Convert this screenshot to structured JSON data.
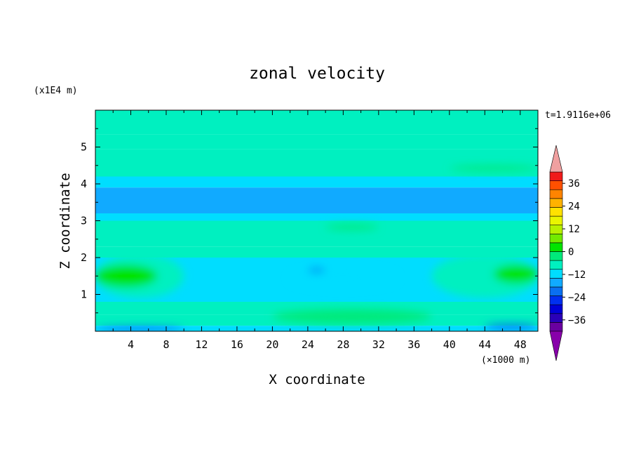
{
  "chart_data": {
    "type": "heatmap",
    "title": "zonal velocity",
    "xlabel": "X coordinate",
    "ylabel": "Z coordinate",
    "x_unit": "(×1000 m)",
    "y_unit": "(x1E4 m)",
    "time_label": "t=1.9116e+06",
    "xlim": [
      0,
      50
    ],
    "ylim": [
      0,
      6
    ],
    "x_ticks": [
      4,
      8,
      12,
      16,
      20,
      24,
      28,
      32,
      36,
      40,
      44,
      48
    ],
    "x_tick_labels": [
      "4",
      "8",
      "12",
      "16",
      "20",
      "24",
      "28",
      "32",
      "36",
      "40",
      "44",
      "48"
    ],
    "y_ticks": [
      1,
      2,
      3,
      4,
      5
    ],
    "y_tick_labels": [
      "1",
      "2",
      "3",
      "4",
      "5"
    ],
    "colorbar": {
      "min": -42,
      "max": 42,
      "step": 6,
      "extend": "both",
      "ticks": [
        36,
        24,
        12,
        0,
        -12,
        -24,
        -36
      ],
      "tick_labels": [
        "36",
        "24",
        "12",
        "0",
        "−12",
        "−24",
        "−36"
      ],
      "colors": [
        "#6a00a0",
        "#2a00b8",
        "#0000d8",
        "#0030f0",
        "#0a70f0",
        "#11aaff",
        "#00ddff",
        "#00f0c0",
        "#00ea7a",
        "#00e400",
        "#72ea00",
        "#b8f000",
        "#eaf500",
        "#ffe200",
        "#ffb200",
        "#ff8400",
        "#ff5000",
        "#f01a1a"
      ],
      "under_color": "#8800aa",
      "over_color": "#f0a0a0"
    },
    "bands": [
      {
        "z": [
          5.8,
          6.0
        ],
        "value": 0
      },
      {
        "z": [
          5.35,
          5.8
        ],
        "value": 0
      },
      {
        "z": [
          4.95,
          5.35
        ],
        "value": 3
      },
      {
        "z": [
          4.2,
          4.95
        ],
        "value": 0
      },
      {
        "z": [
          3.9,
          4.2
        ],
        "value": -6
      },
      {
        "z": [
          3.2,
          3.9
        ],
        "value": -10
      },
      {
        "z": [
          3.0,
          3.2
        ],
        "value": -4
      },
      {
        "z": [
          2.3,
          3.0
        ],
        "value": 3
      },
      {
        "z": [
          2.0,
          2.3
        ],
        "value": 0
      },
      {
        "z": [
          0.8,
          2.0
        ],
        "value": -3
      },
      {
        "z": [
          0.45,
          0.8
        ],
        "value": 0
      },
      {
        "z": [
          0.15,
          0.45
        ],
        "value": 0
      },
      {
        "z": [
          0.0,
          0.15
        ],
        "value": -6
      }
    ],
    "features": [
      {
        "x": [
          0,
          10
        ],
        "z": [
          0.9,
          2.1
        ],
        "value": 5
      },
      {
        "x": [
          0,
          7
        ],
        "z": [
          1.2,
          1.8
        ],
        "value": 12
      },
      {
        "x": [
          38,
          50
        ],
        "z": [
          0.9,
          2.1
        ],
        "value": 5
      },
      {
        "x": [
          45,
          50
        ],
        "z": [
          1.3,
          1.8
        ],
        "value": 12
      },
      {
        "x": [
          20,
          38
        ],
        "z": [
          0.2,
          0.6
        ],
        "value": 6
      },
      {
        "x": [
          22,
          34
        ],
        "z": [
          1.2,
          1.7
        ],
        "value": -6
      },
      {
        "x": [
          24,
          26
        ],
        "z": [
          1.6,
          1.7
        ],
        "value": -14
      },
      {
        "x": [
          0,
          10
        ],
        "z": [
          0.0,
          0.12
        ],
        "value": -18
      },
      {
        "x": [
          44,
          50
        ],
        "z": [
          0.05,
          0.2
        ],
        "value": -14
      },
      {
        "x": [
          26,
          32
        ],
        "z": [
          2.75,
          2.9
        ],
        "value": 8
      },
      {
        "x": [
          40,
          50
        ],
        "z": [
          4.35,
          4.5
        ],
        "value": 6
      }
    ]
  }
}
